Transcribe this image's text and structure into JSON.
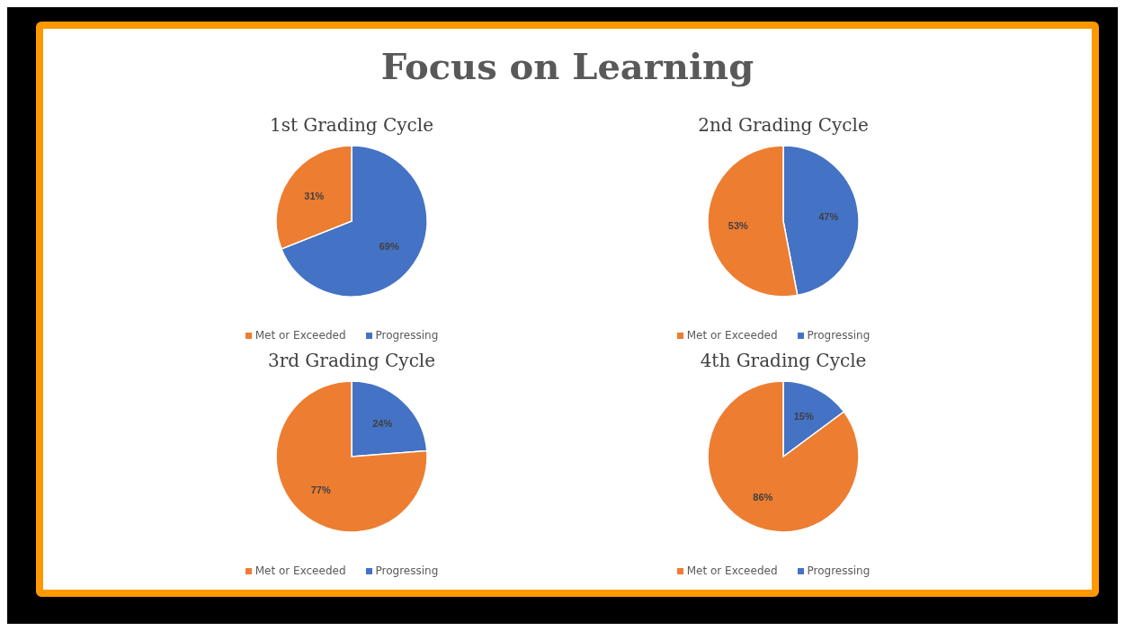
{
  "chart_data": [
    {
      "type": "pie",
      "title": "1st Grading Cycle",
      "annotations": [
        "Focus on Learning"
      ],
      "categories": [
        "Progressing",
        "Met or Exceeded"
      ],
      "values": [
        69,
        31
      ],
      "colors": [
        "#4472c4",
        "#ed7d31"
      ],
      "value_labels": [
        "69%",
        "31%"
      ],
      "legend": "bottom"
    },
    {
      "type": "pie",
      "title": "2nd Grading Cycle",
      "categories": [
        "Progressing",
        "Met or Exceeded"
      ],
      "values": [
        47,
        53
      ],
      "colors": [
        "#4472c4",
        "#ed7d31"
      ],
      "value_labels": [
        "47%",
        "53%"
      ],
      "legend": "bottom"
    },
    {
      "type": "pie",
      "title": "3rd Grading Cycle",
      "categories": [
        "Progressing",
        "Met or Exceeded"
      ],
      "values": [
        24,
        77
      ],
      "colors": [
        "#4472c4",
        "#ed7d31"
      ],
      "value_labels": [
        "24%",
        "77%"
      ],
      "legend": "bottom"
    },
    {
      "type": "pie",
      "title": "4th Grading Cycle",
      "categories": [
        "Progressing",
        "Met or Exceeded"
      ],
      "values": [
        15,
        86
      ],
      "colors": [
        "#4472c4",
        "#ed7d31"
      ],
      "value_labels": [
        "15%",
        "86%"
      ],
      "legend": "bottom"
    }
  ]
}
